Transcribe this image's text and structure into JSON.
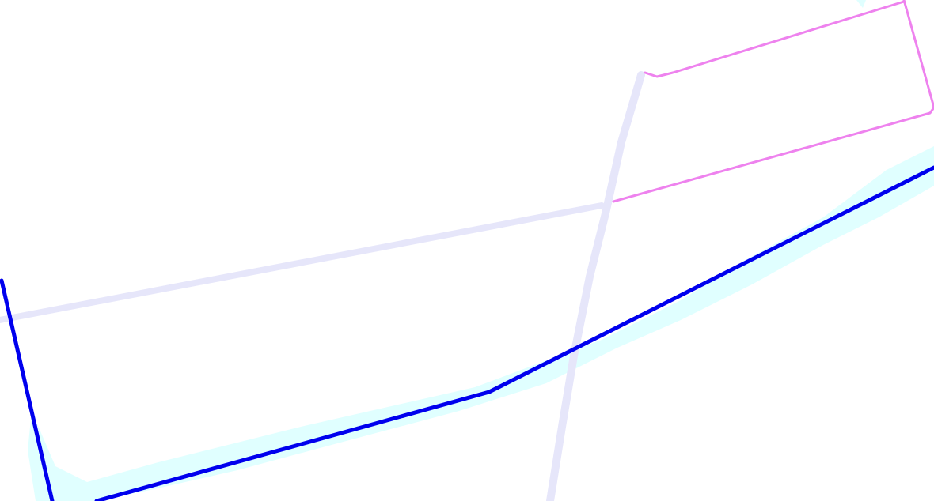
{
  "map": {
    "background_color": "#ffffff",
    "layers": [
      {
        "id": "coastline-shade",
        "kind": "shaded-area",
        "color": "#e0ffff"
      },
      {
        "id": "boundary-blue",
        "kind": "line",
        "color": "#0000ee"
      },
      {
        "id": "road-lavender",
        "kind": "line",
        "color": "#e6e6fa"
      },
      {
        "id": "boundary-violet",
        "kind": "line",
        "color": "#ee82ee"
      }
    ]
  }
}
